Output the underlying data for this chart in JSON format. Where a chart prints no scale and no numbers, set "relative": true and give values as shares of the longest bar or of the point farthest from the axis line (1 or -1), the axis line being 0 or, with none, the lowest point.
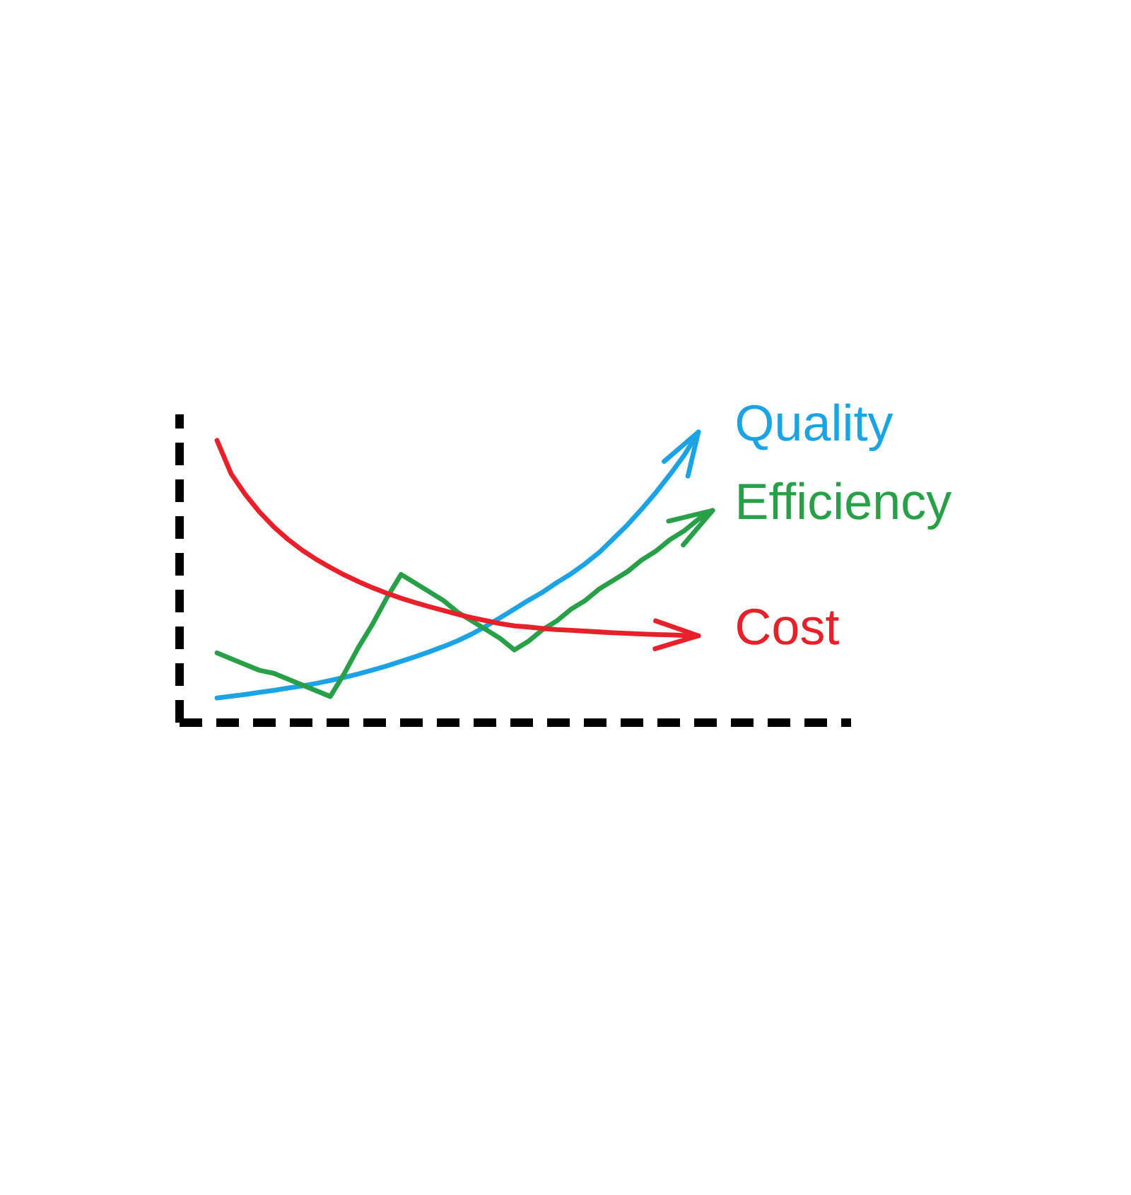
{
  "chart_data": {
    "type": "line",
    "relative": true,
    "marker": "none",
    "legend": "right",
    "categories": [
      null,
      null,
      null,
      null,
      null,
      null,
      null,
      null,
      null,
      null,
      null,
      null,
      null,
      null,
      null,
      null,
      null,
      null,
      null,
      null,
      null,
      null,
      null,
      null,
      null,
      null,
      null,
      null,
      null,
      null,
      null,
      null,
      null,
      null,
      null,
      null
    ],
    "series": [
      {
        "name": "Quality",
        "color": "#1ba3e6",
        "values": [
          0.085,
          0.091,
          0.097,
          0.104,
          0.111,
          0.119,
          0.126,
          0.135,
          0.145,
          0.156,
          0.168,
          0.181,
          0.195,
          0.211,
          0.227,
          0.244,
          0.262,
          0.282,
          0.305,
          0.332,
          0.361,
          0.391,
          0.421,
          0.449,
          0.482,
          0.512,
          0.547,
          0.586,
          0.633,
          0.681,
          0.735,
          0.792,
          0.854,
          0.92,
          1.0,
          null
        ]
      },
      {
        "name": "Efficiency",
        "color": "#27a047",
        "values": [
          0.24,
          0.22,
          0.2,
          0.18,
          0.17,
          0.15,
          0.13,
          0.11,
          0.09,
          0.17,
          0.26,
          0.34,
          0.43,
          0.51,
          0.48,
          0.45,
          0.42,
          0.38,
          0.35,
          0.32,
          0.29,
          0.25,
          0.28,
          0.32,
          0.35,
          0.39,
          0.42,
          0.46,
          0.49,
          0.52,
          0.56,
          0.59,
          0.63,
          0.66,
          0.7,
          0.73
        ]
      },
      {
        "name": "Cost",
        "color": "#e8202a",
        "values": [
          0.971,
          0.856,
          0.785,
          0.725,
          0.674,
          0.631,
          0.594,
          0.562,
          0.534,
          0.508,
          0.485,
          0.464,
          0.445,
          0.428,
          0.413,
          0.399,
          0.386,
          0.373,
          0.361,
          0.351,
          0.341,
          0.333,
          0.329,
          0.324,
          0.32,
          0.318,
          0.315,
          0.312,
          0.309,
          0.307,
          0.305,
          0.303,
          0.302,
          0.3,
          0.299,
          null
        ]
      }
    ]
  }
}
